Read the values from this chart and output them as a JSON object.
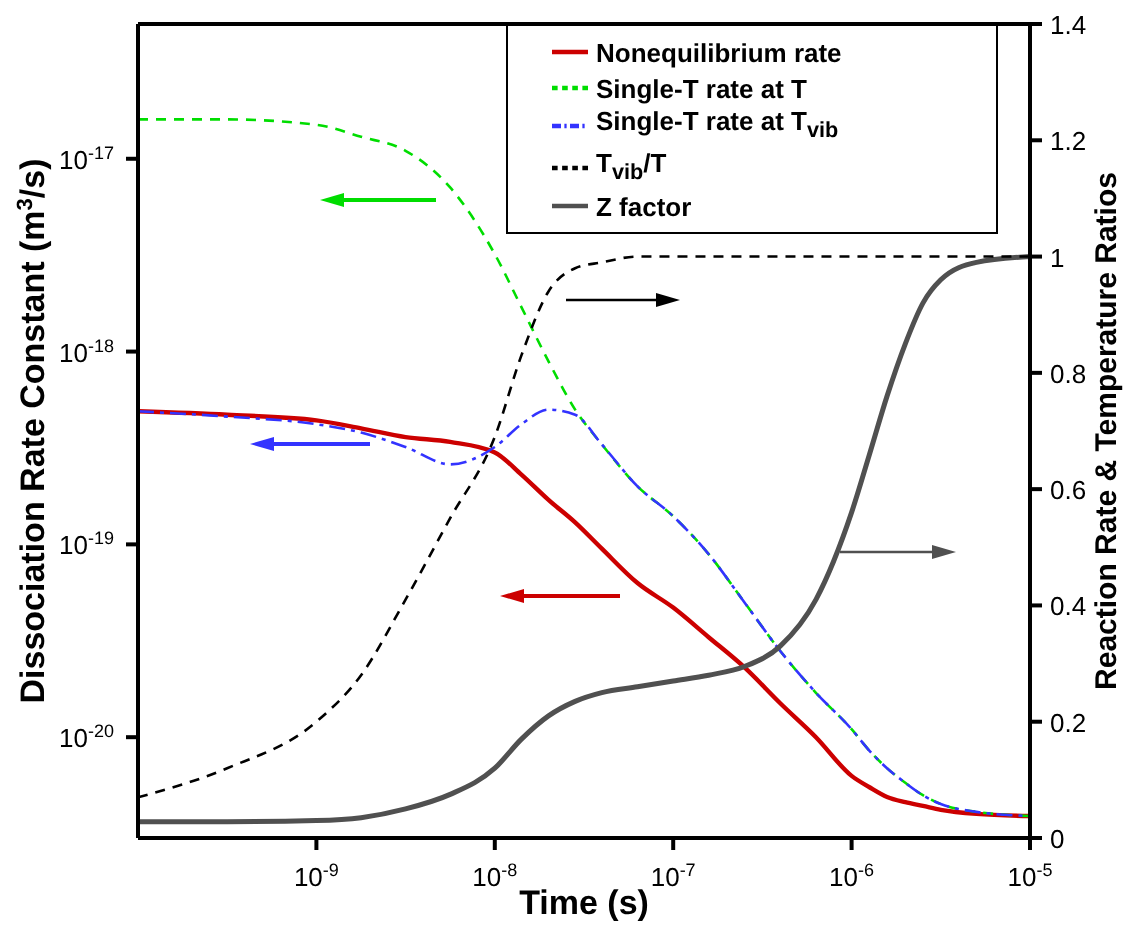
{
  "chart_data": {
    "type": "line",
    "xlabel": "Time (s)",
    "ylabel": "Dissociation Rate Constant (m$^{3}$/s)",
    "y2label": "Reaction Rate & Temperature Ratios",
    "x": [
      1e-10,
      3.16e-10,
      1e-09,
      1.78e-09,
      3.16e-09,
      5.62e-09,
      1e-08,
      1.41e-08,
      2e-08,
      2.82e-08,
      3.98e-08,
      6.31e-08,
      1e-07,
      1.58e-07,
      2.51e-07,
      3.98e-07,
      6.31e-07,
      1e-06,
      1.26e-06,
      1.58e-06,
      2e-06,
      2.51e-06,
      3.16e-06,
      5.01e-06,
      1e-05
    ],
    "series": [
      {
        "name": "Nonequilibrium rate",
        "color": "#cc0000",
        "line_style": "solid",
        "values": [
          4.9e-19,
          4.7e-19,
          4.4e-19,
          4e-19,
          3.6e-19,
          3.4e-19,
          3e-19,
          2.3e-19,
          1.7e-19,
          1.3e-19,
          9.5e-20,
          6.3e-20,
          4.7e-20,
          3.3e-20,
          2.3e-20,
          1.5e-20,
          1e-20,
          6.3e-21,
          5.5e-21,
          4.9e-21,
          4.6e-21,
          4.4e-21,
          4.2e-21,
          4e-21,
          3.9e-21
        ]
      },
      {
        "name": "Single-T rate at T",
        "color": "#00dd00",
        "line_style": "dashed",
        "values": [
          1.6e-17,
          1.6e-17,
          1.5e-17,
          1.3e-17,
          1.1e-17,
          7.1e-18,
          3.2e-18,
          1.7e-18,
          8.9e-19,
          5e-19,
          3.3e-19,
          2e-19,
          1.4e-19,
          8.9e-20,
          5e-20,
          2.8e-20,
          1.7e-20,
          1.1e-20,
          8.5e-21,
          6.9e-21,
          5.8e-21,
          5e-21,
          4.5e-21,
          4.1e-21,
          3.9e-21
        ]
      },
      {
        "name": "Single-T rate at T$_{vib}$",
        "color": "#3333ff",
        "line_style": "dashdot",
        "values": [
          4.9e-19,
          4.6e-19,
          4.2e-19,
          3.8e-19,
          3.2e-19,
          2.6e-19,
          3.2e-19,
          4.2e-19,
          5e-19,
          4.7e-19,
          3.3e-19,
          2e-19,
          1.4e-19,
          8.9e-20,
          5e-20,
          2.8e-20,
          1.7e-20,
          1.1e-20,
          8.5e-21,
          6.9e-21,
          5.8e-21,
          5e-21,
          4.5e-21,
          4.1e-21,
          3.9e-21
        ]
      },
      {
        "name": "Z factor",
        "color": "#505050",
        "line_style": "solid",
        "axis": "y2",
        "values": [
          0.028,
          0.028,
          0.03,
          0.035,
          0.05,
          0.075,
          0.12,
          0.17,
          0.21,
          0.235,
          0.25,
          0.26,
          0.27,
          0.28,
          0.295,
          0.33,
          0.41,
          0.56,
          0.66,
          0.76,
          0.85,
          0.92,
          0.96,
          0.99,
          1.0
        ]
      },
      {
        "name": "T$_{vib}$/T",
        "color": "#000000",
        "line_style": "dashed",
        "axis": "y2",
        "values": [
          0.07,
          0.12,
          0.2,
          0.28,
          0.41,
          0.55,
          0.69,
          0.83,
          0.94,
          0.98,
          0.99,
          1.0,
          1.0,
          1.0,
          1.0,
          1.0,
          1.0,
          1.0,
          1.0,
          1.0,
          1.0,
          1.0,
          1.0,
          1.0,
          1.0
        ]
      }
    ],
    "log": "xy",
    "xlim": [
      1e-10,
      1e-05
    ],
    "xticks": [
      {
        "value": 1e-09,
        "label": "10$^{-9}$"
      },
      {
        "value": 1e-08,
        "label": "10$^{-8}$"
      },
      {
        "value": 1e-07,
        "label": "10$^{-7}$"
      },
      {
        "value": 1e-06,
        "label": "10$^{-6}$"
      },
      {
        "value": 1e-05,
        "label": "10$^{-5}$"
      }
    ],
    "ylim": [
      3e-21,
      5e-17
    ],
    "yticks": [
      {
        "value": 1e-20,
        "label": "10$^{-20}$"
      },
      {
        "value": 1e-19,
        "label": "10$^{-19}$"
      },
      {
        "value": 1e-18,
        "label": "10$^{-18}$"
      },
      {
        "value": 1e-17,
        "label": "10$^{-17}$"
      }
    ],
    "y2lim": [
      0,
      1.4
    ],
    "y2ticks": [
      0,
      0.2,
      0.4,
      0.6,
      0.8,
      1,
      1.2,
      1.4
    ],
    "grid": false,
    "legend": "top right",
    "marker": "none"
  }
}
